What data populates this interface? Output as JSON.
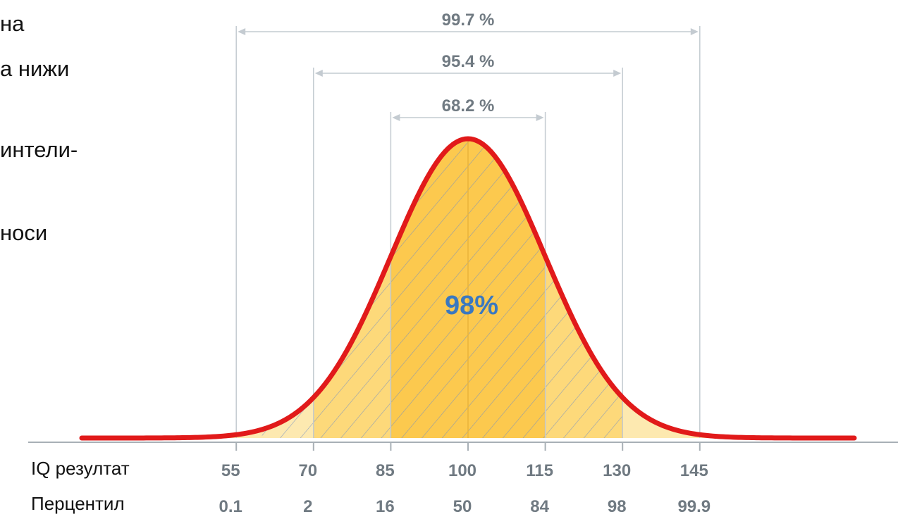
{
  "slide_text_fragments": [
    "на",
    "а нижи",
    "интели-",
    "носи"
  ],
  "chart_data": {
    "type": "area",
    "curve": "normal distribution",
    "mean": 100,
    "sd": 15,
    "xlim": [
      25,
      175
    ],
    "shaded_range": [
      60,
      130
    ],
    "center_label": "98%",
    "intervals": [
      {
        "label": "99.7 %",
        "from": 55,
        "to": 145
      },
      {
        "label": "95.4 %",
        "from": 70,
        "to": 130
      },
      {
        "label": "68.2 %",
        "from": 85,
        "to": 115
      }
    ],
    "iq_row_label": "IQ резултат",
    "percentile_row_label": "Перцентил",
    "iq_scores": [
      "55",
      "70",
      "85",
      "100",
      "115",
      "130",
      "145"
    ],
    "percentiles": [
      "0.1",
      "2",
      "16",
      "50",
      "84",
      "98",
      "99.9"
    ],
    "colors": {
      "curve": "#e11a1a",
      "fill_light": "#fde9b0",
      "fill_mid": "#fdd97a",
      "fill_dark": "#fcc94e",
      "hatch": "#6a8cc8",
      "guide": "#c4cbd1",
      "label_gray": "#707a82",
      "center_label": "#3a78c0",
      "axis": "#a8b0b6"
    }
  }
}
